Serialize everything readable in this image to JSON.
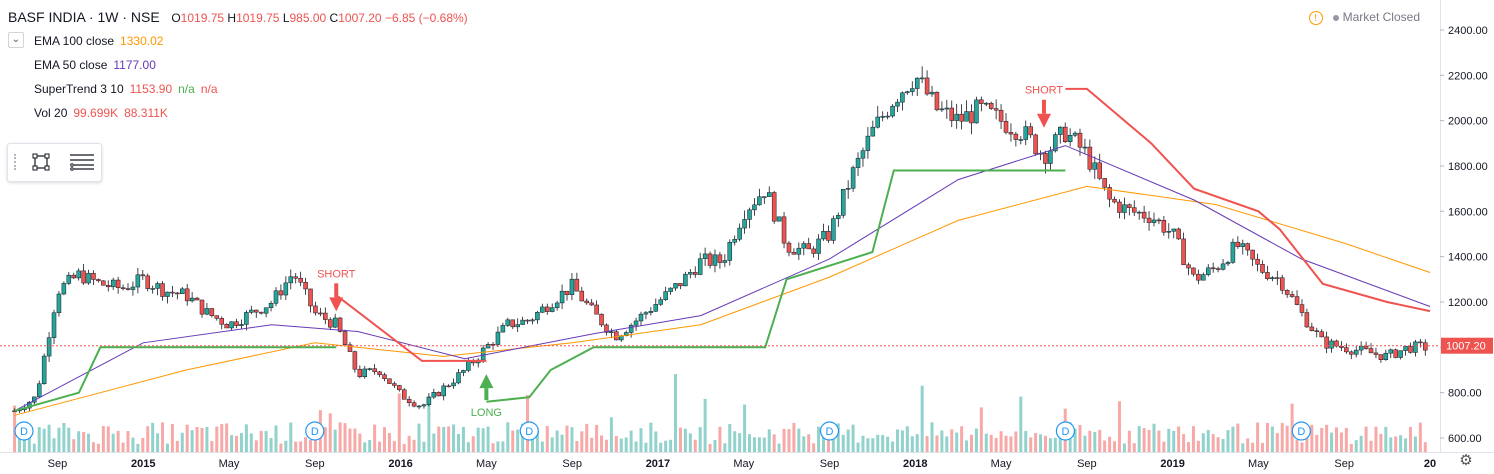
{
  "header": {
    "symbol": "BASF INDIA · 1W · NSE",
    "open_label": "O",
    "open": "1019.75",
    "high_label": "H",
    "high": "1019.75",
    "low_label": "L",
    "low": "985.00",
    "close_label": "C",
    "close": "1007.20",
    "change": "−6.85 (−0.68%)"
  },
  "indicators": [
    {
      "label": "EMA 100 close",
      "value": "1330.02",
      "color": "#ff9800"
    },
    {
      "label": "EMA 50 close",
      "value": "1177.00",
      "color": "#673ab7"
    },
    {
      "label": "SuperTrend 3 10",
      "value": "1153.90",
      "extra1": "n/a",
      "extra2": "n/a",
      "color": "#ef5350",
      "up_color": "#4caf50"
    },
    {
      "label": "Vol 20",
      "value": "99.699K",
      "extra1": "88.311K",
      "color": "#ef5350"
    }
  ],
  "market_status": "Market Closed",
  "icons": {
    "collapse": "chevron-down-icon",
    "shape_tool": "rectangle-icon",
    "list_tool": "list-icon",
    "warning": "warning-icon",
    "settings": "gear-icon"
  },
  "chart_data": {
    "type": "candlestick",
    "symbol": "BASF INDIA",
    "interval": "1W",
    "exchange": "NSE",
    "y_axis": {
      "ticks": [
        600,
        800,
        1000,
        1200,
        1400,
        1600,
        1800,
        2000,
        2200,
        2400
      ],
      "labels": [
        "600.00",
        "800.00",
        "1000.00",
        "1200.00",
        "1400.00",
        "1600.00",
        "1800.00",
        "2000.00",
        "2200.00",
        "2400.00"
      ],
      "range": [
        580,
        2460
      ],
      "position": "right"
    },
    "x_axis": {
      "labels": [
        "Sep",
        "2015",
        "May",
        "Sep",
        "2016",
        "May",
        "Sep",
        "2017",
        "May",
        "Sep",
        "2018",
        "May",
        "Sep",
        "2019",
        "May",
        "Sep",
        "20"
      ],
      "range": [
        "2014-07",
        "2020-01"
      ]
    },
    "last_price": {
      "value": 1007.2,
      "label": "1007.20",
      "color": "#ef5350"
    },
    "price_path": [
      [
        "2014-07",
        720
      ],
      [
        "2014-08",
        780
      ],
      [
        "2014-09",
        1250
      ],
      [
        "2014-10",
        1320
      ],
      [
        "2014-11",
        1280
      ],
      [
        "2014-12",
        1260
      ],
      [
        "2015-01",
        1300
      ],
      [
        "2015-02",
        1250
      ],
      [
        "2015-03",
        1230
      ],
      [
        "2015-04",
        1150
      ],
      [
        "2015-05",
        1100
      ],
      [
        "2015-06",
        1150
      ],
      [
        "2015-07",
        1200
      ],
      [
        "2015-08",
        1330
      ],
      [
        "2015-09",
        1150
      ],
      [
        "2015-10",
        1100
      ],
      [
        "2015-11",
        880
      ],
      [
        "2015-12",
        900
      ],
      [
        "2016-01",
        790
      ],
      [
        "2016-02",
        740
      ],
      [
        "2016-03",
        820
      ],
      [
        "2016-04",
        900
      ],
      [
        "2016-05",
        1000
      ],
      [
        "2016-06",
        1100
      ],
      [
        "2016-07",
        1120
      ],
      [
        "2016-08",
        1200
      ],
      [
        "2016-09",
        1270
      ],
      [
        "2016-10",
        1150
      ],
      [
        "2016-11",
        1050
      ],
      [
        "2016-12",
        1120
      ],
      [
        "2017-01",
        1200
      ],
      [
        "2017-02",
        1280
      ],
      [
        "2017-03",
        1380
      ],
      [
        "2017-04",
        1380
      ],
      [
        "2017-05",
        1600
      ],
      [
        "2017-06",
        1700
      ],
      [
        "2017-07",
        1450
      ],
      [
        "2017-08",
        1420
      ],
      [
        "2017-09",
        1500
      ],
      [
        "2017-10",
        1750
      ],
      [
        "2017-11",
        1950
      ],
      [
        "2017-12",
        2100
      ],
      [
        "2018-01",
        2200
      ],
      [
        "2018-02",
        2050
      ],
      [
        "2018-03",
        2000
      ],
      [
        "2018-04",
        2050
      ],
      [
        "2018-05",
        2000
      ],
      [
        "2018-06",
        1950
      ],
      [
        "2018-07",
        1850
      ],
      [
        "2018-08",
        1950
      ],
      [
        "2018-09",
        1850
      ],
      [
        "2018-10",
        1650
      ],
      [
        "2018-11",
        1600
      ],
      [
        "2018-12",
        1580
      ],
      [
        "2019-01",
        1500
      ],
      [
        "2019-02",
        1300
      ],
      [
        "2019-03",
        1350
      ],
      [
        "2019-04",
        1450
      ],
      [
        "2019-05",
        1350
      ],
      [
        "2019-06",
        1300
      ],
      [
        "2019-07",
        1150
      ],
      [
        "2019-08",
        1020
      ],
      [
        "2019-09",
        1000
      ],
      [
        "2019-10",
        980
      ],
      [
        "2019-11",
        960
      ],
      [
        "2019-12",
        1000
      ]
    ],
    "series": [
      {
        "name": "EMA 100 close",
        "color": "#ff9800",
        "points": [
          [
            "2014-07",
            700
          ],
          [
            "2015-03",
            900
          ],
          [
            "2015-09",
            1020
          ],
          [
            "2016-03",
            960
          ],
          [
            "2016-09",
            1020
          ],
          [
            "2017-03",
            1100
          ],
          [
            "2017-09",
            1310
          ],
          [
            "2018-03",
            1560
          ],
          [
            "2018-09",
            1710
          ],
          [
            "2019-03",
            1630
          ],
          [
            "2019-09",
            1460
          ],
          [
            "2020-01",
            1330
          ]
        ]
      },
      {
        "name": "EMA 50 close",
        "color": "#673ab7",
        "points": [
          [
            "2014-07",
            720
          ],
          [
            "2015-01",
            1020
          ],
          [
            "2015-07",
            1100
          ],
          [
            "2015-11",
            1070
          ],
          [
            "2016-04",
            950
          ],
          [
            "2016-10",
            1060
          ],
          [
            "2017-03",
            1140
          ],
          [
            "2017-09",
            1390
          ],
          [
            "2018-03",
            1740
          ],
          [
            "2018-08",
            1890
          ],
          [
            "2019-02",
            1650
          ],
          [
            "2019-07",
            1390
          ],
          [
            "2020-01",
            1180
          ]
        ]
      },
      {
        "name": "SuperTrend 3 10 (up)",
        "color": "#4caf50",
        "points": [
          [
            "2014-07",
            720
          ],
          [
            "2014-10",
            800
          ],
          [
            "2014-11",
            1000
          ],
          [
            "2015-10",
            1000
          ],
          [
            "2015-10",
            1000
          ]
        ]
      },
      {
        "name": "SuperTrend 3 10 (down)",
        "color": "#ef5350",
        "points": [
          [
            "2015-10",
            1230
          ],
          [
            "2016-02",
            940
          ],
          [
            "2016-05",
            940
          ]
        ]
      }
    ],
    "volume": {
      "label": "Vol 20",
      "ma": "88.311K",
      "axis_low": 600
    },
    "annotations": [
      {
        "text": "SHORT",
        "date": "2015-10",
        "price": 1150,
        "color": "#ef5350"
      },
      {
        "text": "LONG",
        "date": "2016-05",
        "price": 820,
        "color": "#4caf50"
      },
      {
        "text": "SHORT",
        "date": "2018-07",
        "price": 1960,
        "color": "#ef5350"
      }
    ],
    "dividends": {
      "label": "D",
      "dates": [
        "2014-07",
        "2015-09",
        "2016-07",
        "2017-09",
        "2018-08",
        "2019-07"
      ]
    }
  }
}
